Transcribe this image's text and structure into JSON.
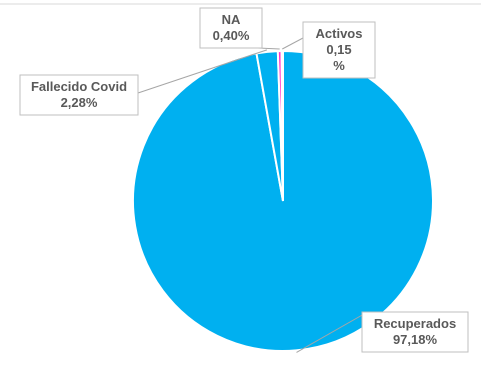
{
  "chart_data": {
    "type": "pie",
    "title": "",
    "slices": [
      {
        "name": "Recuperados",
        "value": 97.18,
        "label_lines": [
          "Recuperados",
          "97,18%"
        ],
        "color": "#00B0F0"
      },
      {
        "name": "Fallecido Covid",
        "value": 2.28,
        "label_lines": [
          "Fallecido Covid",
          "2,28%"
        ],
        "color": "#00B0F0"
      },
      {
        "name": "NA",
        "value": 0.4,
        "label_lines": [
          "NA",
          "0,40%"
        ],
        "color": "#FF33CC"
      },
      {
        "name": "Activos",
        "value": 0.15,
        "label_lines": [
          "Activos",
          "0,15",
          "%"
        ],
        "color": "#00B0F0"
      }
    ],
    "legend": "none",
    "data_labels": "callouts"
  },
  "colors": {
    "background": "#ffffff",
    "slice_border": "#ffffff",
    "label_text": "#595959"
  }
}
